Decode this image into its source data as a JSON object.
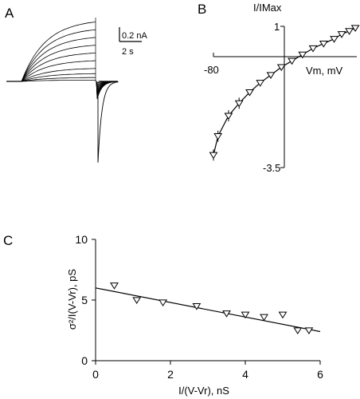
{
  "panels": {
    "a_label": "A",
    "b_label": "B",
    "c_label": "C"
  },
  "scale_bar": {
    "current": "0.2 nA",
    "time": "2 s"
  },
  "chart_data": [
    {
      "panel": "A",
      "type": "line",
      "title": "",
      "trace_count": 10,
      "step_current_amplitudes_nA": [
        0.46,
        0.4,
        0.34,
        0.28,
        0.22,
        0.16,
        0.1,
        0.06,
        0.03,
        0.01
      ],
      "tail_current_peak_nA": -0.6,
      "scale": {
        "current_nA": 0.2,
        "time_s": 2
      }
    },
    {
      "panel": "B",
      "type": "scatter",
      "ylabel": "I/IMax",
      "xlabel": "Vm, mV",
      "x_tick_label": "-80",
      "y_tick_labels": [
        "1",
        "-3.5"
      ],
      "ylim": [
        -3.5,
        1
      ],
      "xlim": [
        -80,
        15
      ],
      "points": [
        {
          "x": -80,
          "y": -3.1
        },
        {
          "x": -77,
          "y": -2.5
        },
        {
          "x": -70,
          "y": -1.85
        },
        {
          "x": -63,
          "y": -1.45
        },
        {
          "x": -56,
          "y": -1.1
        },
        {
          "x": -49,
          "y": -0.8
        },
        {
          "x": -42,
          "y": -0.55
        },
        {
          "x": -35,
          "y": -0.3
        },
        {
          "x": -28,
          "y": -0.1
        },
        {
          "x": -21,
          "y": 0.1
        },
        {
          "x": -14,
          "y": 0.3
        },
        {
          "x": -7,
          "y": 0.45
        },
        {
          "x": 0,
          "y": 0.6
        },
        {
          "x": 5,
          "y": 0.75
        },
        {
          "x": 10,
          "y": 0.85
        },
        {
          "x": 14,
          "y": 0.95
        }
      ]
    },
    {
      "panel": "C",
      "type": "scatter",
      "xlabel": "I/(V-Vr), nS",
      "ylabel": "σ²/I(V-Vr), pS",
      "xlim": [
        0,
        6
      ],
      "ylim": [
        0,
        10
      ],
      "x_ticks": [
        "0",
        "2",
        "4",
        "6"
      ],
      "y_ticks": [
        "0",
        "5",
        "10"
      ],
      "points": [
        {
          "x": 0.5,
          "y": 6.2
        },
        {
          "x": 1.1,
          "y": 5.0
        },
        {
          "x": 1.8,
          "y": 4.8
        },
        {
          "x": 2.7,
          "y": 4.5
        },
        {
          "x": 3.5,
          "y": 3.9
        },
        {
          "x": 4.0,
          "y": 3.8
        },
        {
          "x": 4.5,
          "y": 3.6
        },
        {
          "x": 5.0,
          "y": 3.8
        },
        {
          "x": 5.4,
          "y": 2.5
        },
        {
          "x": 5.7,
          "y": 2.5
        }
      ],
      "fit": {
        "x": [
          0,
          6
        ],
        "y": [
          6.0,
          2.4
        ]
      }
    }
  ]
}
